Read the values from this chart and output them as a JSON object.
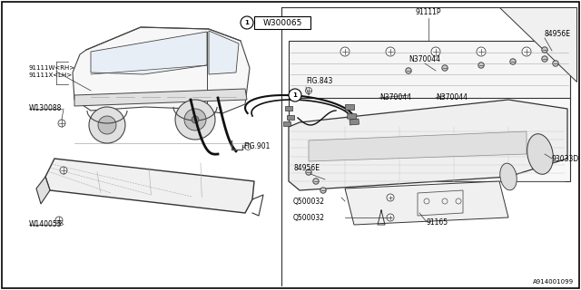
{
  "bg_color": "#ffffff",
  "line_color": "#333333",
  "text_color": "#000000",
  "diagram_ref": "A914001099",
  "left_labels": {
    "rh": "91111W<RH>",
    "lh": "91111X<LH>",
    "w130088": "W130088",
    "w140055": "W140055"
  },
  "right_labels": {
    "top": "91111P",
    "br84956e": "84956E",
    "n370044a": "N370044",
    "n370044b": "N370044",
    "n370044c": "N370044",
    "fig843": "FIG.843",
    "bl84956e": "84956E",
    "q500032a": "Q500032",
    "q500032b": "Q500032",
    "n91165": "91165",
    "n93033d": "93033D"
  },
  "callout": "W300065",
  "fig901": "FIG.901"
}
